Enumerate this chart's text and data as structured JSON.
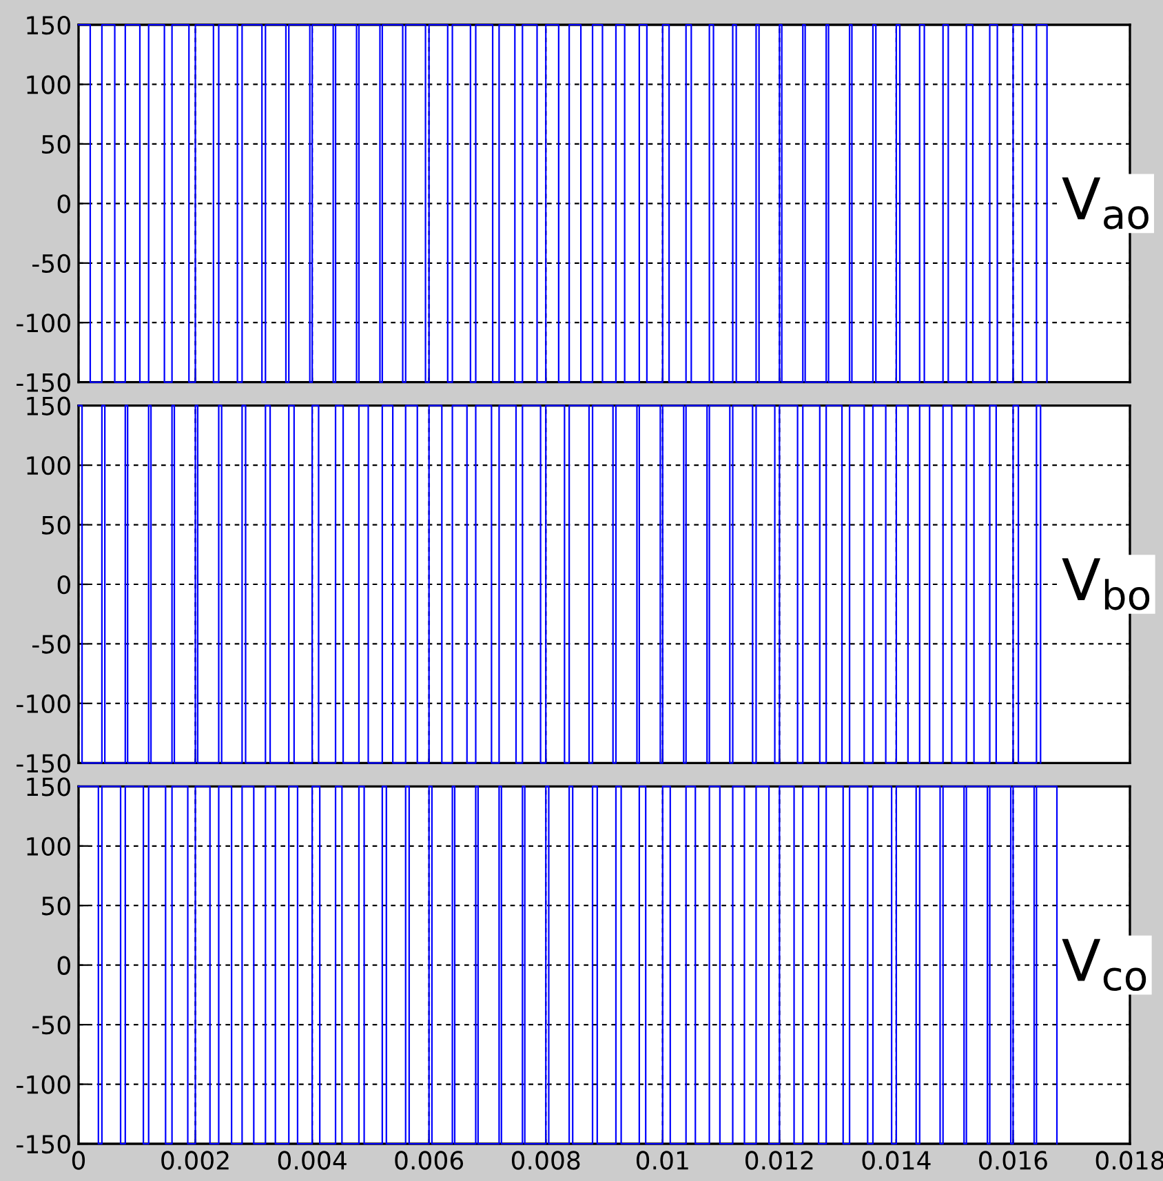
{
  "chart_data": [
    {
      "type": "step",
      "xlim": [
        0,
        0.018
      ],
      "ylim": [
        -150,
        150
      ],
      "xticks": [
        0,
        0.002,
        0.004,
        0.006,
        0.008,
        0.01,
        0.012,
        0.014,
        0.016,
        0.018
      ],
      "yticks": [
        -150,
        -100,
        -50,
        0,
        50,
        100,
        150
      ],
      "grid": true,
      "tick_labels": "y",
      "annotations": [
        "V$_{ao}$"
      ],
      "series": [
        {
          "color": "#0000ff",
          "x": [
            0,
            0.0002,
            0.0004,
            0.00062,
            0.0008,
            0.00105,
            0.0012,
            0.00147,
            0.0016,
            0.00189,
            0.002,
            0.00231,
            0.0024,
            0.00272,
            0.0028,
            0.00314,
            0.0032,
            0.00355,
            0.0036,
            0.00396,
            0.004,
            0.00436,
            0.0044,
            0.00476,
            0.0048,
            0.00516,
            0.0052,
            0.00555,
            0.0056,
            0.00594,
            0.006,
            0.00632,
            0.0064,
            0.00671,
            0.0068,
            0.00709,
            0.0072,
            0.00747,
            0.0076,
            0.00785,
            0.008,
            0.00822,
            0.0084,
            0.0086,
            0.0088,
            0.00897,
            0.0092,
            0.00935,
            0.0096,
            0.00973,
            0.01,
            0.01011,
            0.0104,
            0.01049,
            0.0108,
            0.01087,
            0.0112,
            0.01126,
            0.0116,
            0.01165,
            0.012,
            0.01204,
            0.0124,
            0.01244,
            0.0128,
            0.01284,
            0.0132,
            0.01324,
            0.0136,
            0.01365,
            0.014,
            0.01406,
            0.0144,
            0.01448,
            0.0148,
            0.01489,
            0.0152,
            0.01531,
            0.0156,
            0.01573,
            0.016,
            0.01616,
            0.0164,
            0.01658
          ],
          "values": [
            150,
            -150,
            150,
            -150,
            150,
            -150,
            150,
            -150,
            150,
            -150,
            150,
            -150,
            150,
            -150,
            150,
            -150,
            150,
            -150,
            150,
            -150,
            150,
            -150,
            150,
            -150,
            150,
            -150,
            150,
            -150,
            150,
            -150,
            150,
            -150,
            150,
            -150,
            150,
            -150,
            150,
            -150,
            150,
            -150,
            150,
            -150,
            150,
            -150,
            150,
            -150,
            150,
            -150,
            150,
            -150,
            150,
            -150,
            150,
            -150,
            150,
            -150,
            150,
            -150,
            150,
            -150,
            150,
            -150,
            150,
            -150,
            150,
            -150,
            150,
            -150,
            150,
            -150,
            150,
            -150,
            150,
            -150,
            150,
            -150,
            150,
            -150,
            150,
            -150,
            150,
            -150,
            150,
            -150
          ]
        }
      ]
    },
    {
      "type": "step",
      "xlim": [
        0,
        0.018
      ],
      "ylim": [
        -150,
        150
      ],
      "xticks": [
        0,
        0.002,
        0.004,
        0.006,
        0.008,
        0.01,
        0.012,
        0.014,
        0.016,
        0.018
      ],
      "yticks": [
        -150,
        -100,
        -50,
        0,
        50,
        100,
        150
      ],
      "grid": true,
      "tick_labels": "y",
      "annotations": [
        "V$_{bo}$"
      ],
      "series": [
        {
          "color": "#0000ff",
          "x": [
            0,
            6e-05,
            0.0004,
            0.00045,
            0.0008,
            0.00084,
            0.0012,
            0.00124,
            0.0016,
            0.00164,
            0.002,
            0.00204,
            0.0024,
            0.00245,
            0.0028,
            0.00286,
            0.0032,
            0.00328,
            0.0036,
            0.00369,
            0.004,
            0.00411,
            0.0044,
            0.00453,
            0.0048,
            0.00496,
            0.0052,
            0.00538,
            0.0056,
            0.0058,
            0.006,
            0.00622,
            0.0064,
            0.00665,
            0.0068,
            0.00707,
            0.0072,
            0.00749,
            0.0076,
            0.00791,
            0.008,
            0.00832,
            0.0084,
            0.00874,
            0.0088,
            0.00915,
            0.0092,
            0.00956,
            0.0096,
            0.00996,
            0.01,
            0.01036,
            0.0104,
            0.01076,
            0.0108,
            0.01115,
            0.0112,
            0.01154,
            0.0116,
            0.01192,
            0.012,
            0.01231,
            0.0124,
            0.01269,
            0.0128,
            0.01307,
            0.0132,
            0.01345,
            0.0136,
            0.01382,
            0.014,
            0.0142,
            0.0144,
            0.01457,
            0.0148,
            0.01495,
            0.0152,
            0.01533,
            0.0156,
            0.01571,
            0.016,
            0.01609,
            0.0164,
            0.01647
          ],
          "values": [
            150,
            -150,
            150,
            -150,
            150,
            -150,
            150,
            -150,
            150,
            -150,
            150,
            -150,
            150,
            -150,
            150,
            -150,
            150,
            -150,
            150,
            -150,
            150,
            -150,
            150,
            -150,
            150,
            -150,
            150,
            -150,
            150,
            -150,
            150,
            -150,
            150,
            -150,
            150,
            -150,
            150,
            -150,
            150,
            -150,
            150,
            -150,
            150,
            -150,
            150,
            -150,
            150,
            -150,
            150,
            -150,
            150,
            -150,
            150,
            -150,
            150,
            -150,
            150,
            -150,
            150,
            -150,
            150,
            -150,
            150,
            -150,
            150,
            -150,
            150,
            -150,
            150,
            -150,
            150,
            -150,
            150,
            -150,
            150,
            -150,
            150,
            -150,
            150,
            -150,
            150,
            -150,
            150,
            -150
          ]
        }
      ]
    },
    {
      "type": "step",
      "xlim": [
        0,
        0.018
      ],
      "ylim": [
        -150,
        150
      ],
      "xticks": [
        0,
        0.002,
        0.004,
        0.006,
        0.008,
        0.01,
        0.012,
        0.014,
        0.016,
        0.018
      ],
      "yticks": [
        -150,
        -100,
        -50,
        0,
        50,
        100,
        150
      ],
      "grid": true,
      "annotations": [
        "V$_{co}$"
      ],
      "series": [
        {
          "color": "#0000ff",
          "x": [
            0,
            0.00034,
            0.0004,
            0.00072,
            0.0008,
            0.00111,
            0.0012,
            0.00149,
            0.0016,
            0.00187,
            0.002,
            0.00225,
            0.0024,
            0.00262,
            0.0028,
            0.003,
            0.0032,
            0.00337,
            0.0036,
            0.00375,
            0.004,
            0.00413,
            0.0044,
            0.00451,
            0.0048,
            0.00489,
            0.0052,
            0.00527,
            0.0056,
            0.00566,
            0.006,
            0.00605,
            0.0064,
            0.00644,
            0.0068,
            0.00684,
            0.0072,
            0.00724,
            0.0076,
            0.00764,
            0.008,
            0.00805,
            0.0084,
            0.00846,
            0.0088,
            0.00888,
            0.0092,
            0.00929,
            0.0096,
            0.00971,
            0.01,
            0.01013,
            0.0104,
            0.01056,
            0.0108,
            0.01098,
            0.0112,
            0.0114,
            0.0116,
            0.01182,
            0.012,
            0.01225,
            0.0124,
            0.01267,
            0.0128,
            0.01309,
            0.0132,
            0.01351,
            0.0136,
            0.01392,
            0.014,
            0.01434,
            0.0144,
            0.01475,
            0.0148,
            0.01516,
            0.0152,
            0.01556,
            0.0156,
            0.01596,
            0.016,
            0.01636,
            0.0164,
            0.01675
          ],
          "values": [
            150,
            -150,
            150,
            -150,
            150,
            -150,
            150,
            -150,
            150,
            -150,
            150,
            -150,
            150,
            -150,
            150,
            -150,
            150,
            -150,
            150,
            -150,
            150,
            -150,
            150,
            -150,
            150,
            -150,
            150,
            -150,
            150,
            -150,
            150,
            -150,
            150,
            -150,
            150,
            -150,
            150,
            -150,
            150,
            -150,
            150,
            -150,
            150,
            -150,
            150,
            -150,
            150,
            -150,
            150,
            -150,
            150,
            -150,
            150,
            -150,
            150,
            -150,
            150,
            -150,
            150,
            -150,
            150,
            -150,
            150,
            -150,
            150,
            -150,
            150,
            -150,
            150,
            -150,
            150,
            -150,
            150,
            -150,
            150,
            -150,
            150,
            -150,
            150,
            -150,
            150,
            -150,
            150,
            -150
          ]
        }
      ]
    }
  ]
}
